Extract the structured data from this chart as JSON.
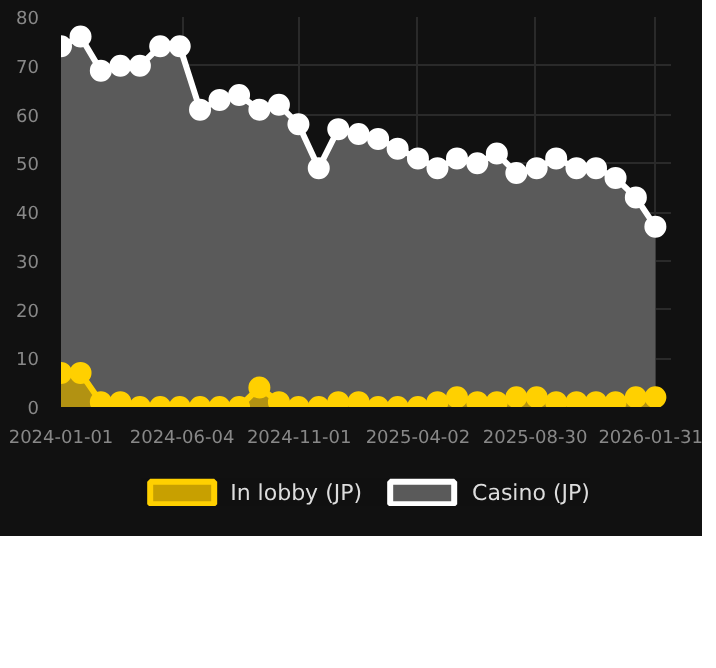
{
  "chart_data": {
    "type": "area",
    "x": [
      "2024-01-01",
      "2024-01-26",
      "2024-02-21",
      "2024-03-17",
      "2024-04-11",
      "2024-05-07",
      "2024-06-01",
      "2024-06-27",
      "2024-07-22",
      "2024-08-16",
      "2024-09-11",
      "2024-10-06",
      "2024-10-31",
      "2024-11-26",
      "2024-12-21",
      "2025-01-16",
      "2025-02-10",
      "2025-03-07",
      "2025-04-02",
      "2025-04-27",
      "2025-05-22",
      "2025-06-17",
      "2025-07-12",
      "2025-08-06",
      "2025-09-01",
      "2025-09-26",
      "2025-10-22",
      "2025-11-16",
      "2025-12-11",
      "2026-01-06",
      "2026-01-31"
    ],
    "series": [
      {
        "name": "In lobby (JP)",
        "color": "#ffd000",
        "values": [
          7,
          7,
          1,
          1,
          0,
          0,
          0,
          0,
          0,
          0,
          4,
          1,
          0,
          0,
          1,
          1,
          0,
          0,
          0,
          1,
          2,
          1,
          1,
          2,
          2,
          1,
          1,
          1,
          1,
          2,
          2
        ]
      },
      {
        "name": "Casino (JP)",
        "color": "#ffffff",
        "values": [
          74,
          76,
          69,
          70,
          70,
          74,
          74,
          61,
          63,
          64,
          61,
          62,
          58,
          49,
          57,
          56,
          55,
          53,
          51,
          49,
          51,
          50,
          52,
          48,
          49,
          51,
          49,
          49,
          47,
          43,
          37
        ]
      }
    ],
    "xlim": [
      "2024-01-01",
      "2026-02-20"
    ],
    "ylim": [
      0,
      80
    ],
    "xticks": [
      "2024-01-01",
      "2024-06-04",
      "2024-11-01",
      "2025-04-02",
      "2025-08-30",
      "2026-01-31"
    ],
    "yticks": [
      0,
      10,
      20,
      30,
      40,
      50,
      60,
      70,
      80
    ],
    "grid": true,
    "legend": "bottom",
    "marker": "circle"
  }
}
